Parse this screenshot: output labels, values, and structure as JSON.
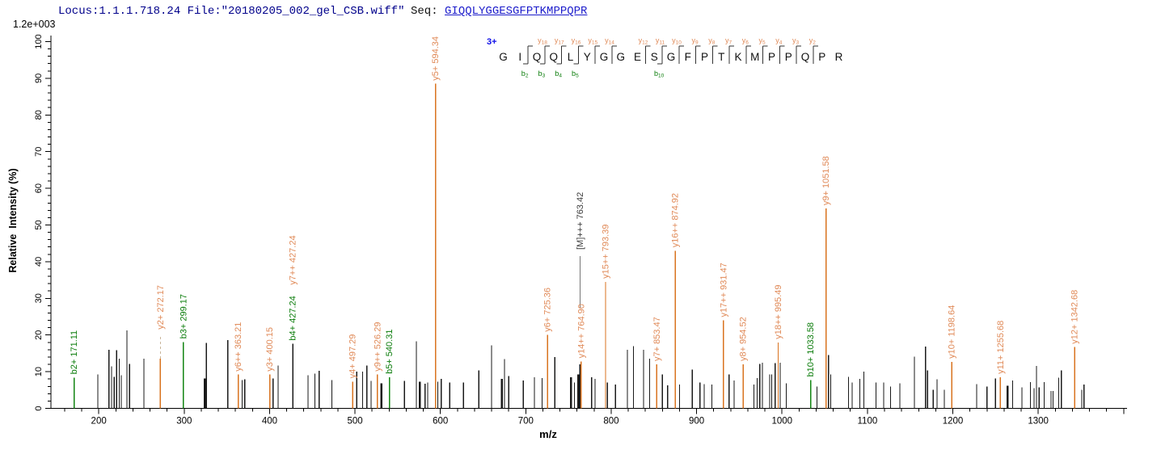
{
  "header": {
    "locus_file": "Locus:1.1.1.718.24 File:\"20180205_002_gel_CSB.wiff\"",
    "seq_label": "Seq: ",
    "sequence": "GIQQLYGGESGFPTKMPPQPR"
  },
  "axes": {
    "max_intensity_label": "1.2e+003",
    "y_title": "Relative  Intensity (%)",
    "x_title": "m/z"
  },
  "sequence_panel": {
    "charge_label": "3+",
    "residues": "GIQQLYGGESGFPTKMPPQPR",
    "cleavages": [
      {
        "after": 1,
        "b": "b2"
      },
      {
        "after": 2,
        "b": "b3",
        "y": "y18"
      },
      {
        "after": 3,
        "b": "b4",
        "y": "y17"
      },
      {
        "after": 4,
        "b": "b5",
        "y": "y16"
      },
      {
        "after": 5,
        "y": "y15"
      },
      {
        "after": 6,
        "y": "y14"
      },
      {
        "after": 8,
        "y": "y12"
      },
      {
        "after": 9,
        "b": "b10",
        "y": "y11"
      },
      {
        "after": 10,
        "y": "y10"
      },
      {
        "after": 11,
        "y": "y9"
      },
      {
        "after": 12,
        "y": "y8"
      },
      {
        "after": 13,
        "y": "y7"
      },
      {
        "after": 14,
        "y": "y6"
      },
      {
        "after": 15,
        "y": "y5"
      },
      {
        "after": 16,
        "y": "y4"
      },
      {
        "after": 17,
        "y": "y3"
      },
      {
        "after": 18,
        "y": "y2"
      }
    ]
  },
  "colors": {
    "y_peak": "#D9731F",
    "y_label": "#E08A58",
    "b_peak": "#128412",
    "b_label": "#0A7C0A",
    "black_peak": "#1A1A1A",
    "precursor_label": "#3C3C3C",
    "dashed_leader": "#C9B59A",
    "solid_leader": "#777777",
    "navy": "#00008B",
    "seq_blue": "#1C1CCB",
    "charge_blue": "#0D0DE8",
    "axis": "#000000"
  },
  "chart_data": {
    "type": "bar",
    "title": "MS/MS fragmentation spectrum",
    "xlabel": "m/z",
    "ylabel": "Relative Intensity (%)",
    "xlim": [
      144,
      1404
    ],
    "ylim": [
      0,
      100
    ],
    "x_major_ticks": [
      200,
      300,
      400,
      500,
      600,
      700,
      800,
      900,
      1000,
      1100,
      1200,
      1300
    ],
    "x_minor_step": 20,
    "y_major_step": 10,
    "y_minor_step": 2,
    "grid": false,
    "annotated_peaks": [
      {
        "mz": 171.11,
        "h": 8.4,
        "series": "b",
        "label": "b2+ 171.11"
      },
      {
        "mz": 272.17,
        "h": 13.6,
        "series": "y",
        "label": "y2+ 272.17",
        "leader": "dashed",
        "leader_len": 28
      },
      {
        "mz": 299.17,
        "h": 18.1,
        "series": "b",
        "label": "b3+ 299.17"
      },
      {
        "mz": 363.21,
        "h": 9.2,
        "series": "y",
        "label": "y6++ 363.21"
      },
      {
        "mz": 400.15,
        "h": 9.2,
        "series": "y",
        "label": "y3+ 400.15"
      },
      {
        "mz": 427.24,
        "h": 17.6,
        "series": "black",
        "labels": [
          {
            "text": "b4+ 427.24",
            "series": "b"
          },
          {
            "text": "y7++ 427.24",
            "series": "y"
          }
        ]
      },
      {
        "mz": 497.29,
        "h": 7.3,
        "series": "y",
        "label": "y4+ 497.29"
      },
      {
        "mz": 526.29,
        "h": 9.2,
        "series": "y",
        "label": "y9++ 526.29"
      },
      {
        "mz": 540.31,
        "h": 8.5,
        "series": "b",
        "label": "b5+ 540.31"
      },
      {
        "mz": 594.34,
        "h": 88.5,
        "series": "y",
        "label": "y5+ 594.34"
      },
      {
        "mz": 725.36,
        "h": 20.0,
        "series": "y",
        "label": "y6+ 725.36"
      },
      {
        "mz": 763.42,
        "h": 12.0,
        "series": "precursor",
        "label": "[M]+++ 763.42",
        "label_offset": 138,
        "leader": "solid",
        "leader_from": 70,
        "leader_to": 134
      },
      {
        "mz": 764.9,
        "h": 12.8,
        "series": "y",
        "label": "y14++ 764.90"
      },
      {
        "mz": 793.39,
        "h": 34.5,
        "series": "y",
        "label": "y15++ 793.39"
      },
      {
        "mz": 853.47,
        "h": 12.0,
        "series": "y",
        "label": "y7+ 853.47"
      },
      {
        "mz": 874.92,
        "h": 43.0,
        "series": "y",
        "label": "y16++ 874.92"
      },
      {
        "mz": 931.47,
        "h": 24.0,
        "series": "y",
        "label": "y17++ 931.47"
      },
      {
        "mz": 954.52,
        "h": 12.0,
        "series": "y",
        "label": "y8+ 954.52"
      },
      {
        "mz": 995.49,
        "h": 18.0,
        "series": "y",
        "label": "y18++ 995.49"
      },
      {
        "mz": 1033.58,
        "h": 7.7,
        "series": "b",
        "label": "b10+ 1033.58"
      },
      {
        "mz": 1051.58,
        "h": 54.5,
        "series": "y",
        "label": "y9+ 1051.58"
      },
      {
        "mz": 1198.64,
        "h": 12.7,
        "series": "y",
        "label": "y10+ 1198.64"
      },
      {
        "mz": 1255.68,
        "h": 8.5,
        "series": "y",
        "label": "y11+ 1255.68"
      },
      {
        "mz": 1342.68,
        "h": 16.7,
        "series": "y",
        "label": "y12+ 1342.68"
      }
    ],
    "unlabeled_peaks": [
      [
        199,
        9.3
      ],
      [
        212,
        16
      ],
      [
        215,
        11.5
      ],
      [
        218,
        8.6
      ],
      [
        221,
        15.9
      ],
      [
        224,
        13.6
      ],
      [
        226.5,
        9
      ],
      [
        233,
        21.3
      ],
      [
        236,
        12.1
      ],
      [
        253,
        13.5
      ],
      [
        324,
        8.1,
        2
      ],
      [
        326,
        17.8
      ],
      [
        351,
        18.6
      ],
      [
        368,
        7.7
      ],
      [
        371,
        7.9
      ],
      [
        404,
        8.1
      ],
      [
        410,
        11.7
      ],
      [
        445,
        9
      ],
      [
        453,
        9.5
      ],
      [
        458,
        10.2
      ],
      [
        473,
        7.7
      ],
      [
        502,
        10
      ],
      [
        509,
        10
      ],
      [
        514,
        11.7
      ],
      [
        519,
        7.5
      ],
      [
        531,
        6.8,
        2
      ],
      [
        558,
        7.5
      ],
      [
        572,
        18.3
      ],
      [
        576,
        7.3,
        2
      ],
      [
        582,
        6.7
      ],
      [
        585,
        7
      ],
      [
        597,
        7.3
      ],
      [
        601,
        8
      ],
      [
        611,
        7
      ],
      [
        627,
        7
      ],
      [
        645,
        10.3
      ],
      [
        660,
        17.2
      ],
      [
        672,
        8,
        2
      ],
      [
        675,
        13.4
      ],
      [
        680,
        8.8
      ],
      [
        697,
        7.6
      ],
      [
        710,
        8.5
      ],
      [
        719,
        8.3
      ],
      [
        734,
        14
      ],
      [
        753,
        8.5,
        2
      ],
      [
        757,
        7
      ],
      [
        761.5,
        9.3,
        2
      ],
      [
        777,
        8.5
      ],
      [
        781,
        8
      ],
      [
        795.5,
        7
      ],
      [
        805,
        6.5
      ],
      [
        819,
        16
      ],
      [
        826,
        17
      ],
      [
        838,
        16
      ],
      [
        845,
        13.5
      ],
      [
        860,
        9.3
      ],
      [
        866,
        6.3
      ],
      [
        880,
        6.5
      ],
      [
        895,
        10.6
      ],
      [
        904,
        7.1
      ],
      [
        909,
        6.6
      ],
      [
        918,
        6.5
      ],
      [
        938,
        9.2
      ],
      [
        944,
        7.6
      ],
      [
        967,
        6.5
      ],
      [
        971,
        8.3
      ],
      [
        974,
        12.1
      ],
      [
        977,
        12.5
      ],
      [
        985.5,
        9.2
      ],
      [
        988,
        9.3
      ],
      [
        992,
        12.3
      ],
      [
        998,
        12.5
      ],
      [
        1005,
        6.8
      ],
      [
        1041,
        5.9
      ],
      [
        1054.5,
        14.5
      ],
      [
        1057,
        9.2
      ],
      [
        1078,
        8.6
      ],
      [
        1082,
        7
      ],
      [
        1091,
        8
      ],
      [
        1096,
        10
      ],
      [
        1110,
        7
      ],
      [
        1119,
        7
      ],
      [
        1127,
        6
      ],
      [
        1138,
        6.8
      ],
      [
        1155,
        14.1
      ],
      [
        1168,
        16.9
      ],
      [
        1170.5,
        10.3
      ],
      [
        1177,
        5.1
      ],
      [
        1181.5,
        7.9
      ],
      [
        1190,
        5.1
      ],
      [
        1228,
        6.6
      ],
      [
        1240,
        6
      ],
      [
        1250,
        8.2
      ],
      [
        1264,
        6.2,
        2
      ],
      [
        1270,
        7.6
      ],
      [
        1281,
        5.7
      ],
      [
        1291,
        7.2
      ],
      [
        1295,
        5.5
      ],
      [
        1298,
        11.6
      ],
      [
        1301,
        5.7
      ],
      [
        1307,
        7.2
      ],
      [
        1315,
        4.7
      ],
      [
        1317.5,
        4.7
      ],
      [
        1324,
        8.4
      ],
      [
        1327,
        10.3
      ],
      [
        1351,
        5.1
      ],
      [
        1353.5,
        6.5
      ]
    ]
  }
}
